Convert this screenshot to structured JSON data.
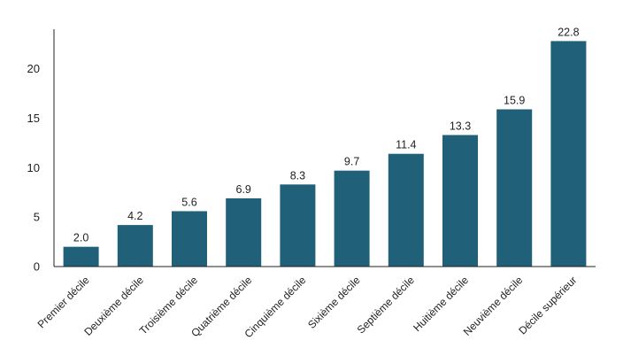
{
  "chart_data": {
    "type": "bar",
    "title": "",
    "xlabel": "",
    "ylabel": "",
    "categories": [
      "Premier décile",
      "Deuxième décile",
      "Troisième décile",
      "Quatrième décile",
      "Cinquième décile",
      "Sixième décile",
      "Septième décile",
      "Huitième décile",
      "Neuvième décile",
      "Décile supérieur"
    ],
    "values": [
      2.0,
      4.2,
      5.6,
      6.9,
      8.3,
      9.7,
      11.4,
      13.3,
      15.9,
      22.8
    ],
    "value_labels": [
      "2.0",
      "4.2",
      "5.6",
      "6.9",
      "8.3",
      "9.7",
      "11.4",
      "13.3",
      "15.9",
      "22.8"
    ],
    "yticks": [
      0,
      5,
      10,
      15,
      20
    ],
    "ytick_labels": [
      "0",
      "5",
      "10",
      "15",
      "20"
    ],
    "ylim": [
      0,
      24
    ],
    "grid": false,
    "legend": "none",
    "bar_color": "#216079"
  }
}
